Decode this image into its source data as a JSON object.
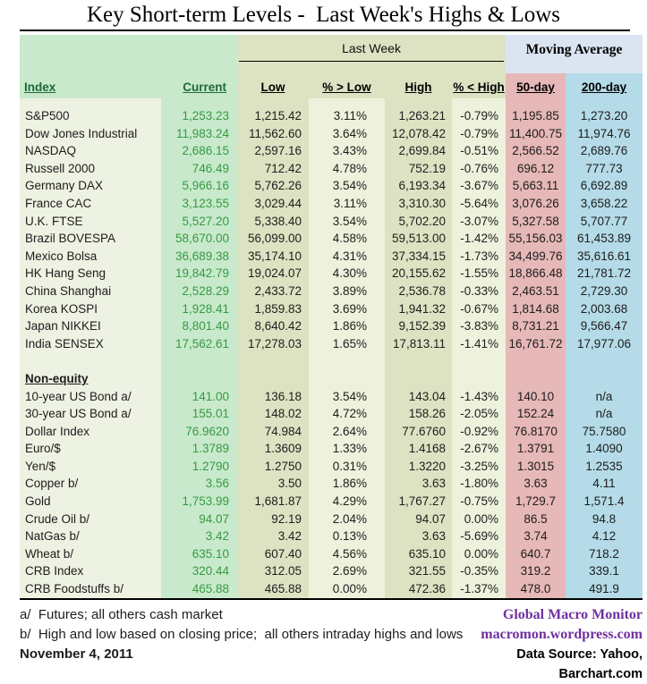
{
  "title": "Key Short-term Levels -  Last Week's Highs & Lows",
  "header": {
    "group_last_week": "Last Week",
    "group_moving_average": "Moving Average",
    "columns": [
      "Index",
      "Current",
      "Low",
      "% > Low",
      "High",
      "% < High",
      "50-day",
      "200-day"
    ]
  },
  "colors": {
    "index_column_bg": "#edf2e2",
    "current_column_bg": "#c8e9cc",
    "low_high_column_bg": "#dde3c2",
    "percent_column_bg": "#eef1dc",
    "moving_average_band_bg": "#dbe5f1",
    "ma50_column_bg": "#e6b8b7",
    "ma200_column_bg": "#b4dbe7",
    "header_green_text": "#1e6b3c",
    "current_value_green": "#379a43",
    "footer_purple": "#7030a0"
  },
  "sections": {
    "equity": {
      "rows": [
        [
          "S&P500",
          "1,253.23",
          "1,215.42",
          "3.11%",
          "1,263.21",
          "-0.79%",
          "1,195.85",
          "1,273.20"
        ],
        [
          "Dow Jones Industrial",
          "11,983.24",
          "11,562.60",
          "3.64%",
          "12,078.42",
          "-0.79%",
          "11,400.75",
          "11,974.76"
        ],
        [
          "NASDAQ",
          "2,686.15",
          "2,597.16",
          "3.43%",
          "2,699.84",
          "-0.51%",
          "2,566.52",
          "2,689.76"
        ],
        [
          "Russell 2000",
          "746.49",
          "712.42",
          "4.78%",
          "752.19",
          "-0.76%",
          "696.12",
          "777.73"
        ],
        [
          "Germany DAX",
          "5,966.16",
          "5,762.26",
          "3.54%",
          "6,193.34",
          "-3.67%",
          "5,663.11",
          "6,692.89"
        ],
        [
          "France CAC",
          "3,123.55",
          "3,029.44",
          "3.11%",
          "3,310.30",
          "-5.64%",
          "3,076.26",
          "3,658.22"
        ],
        [
          "U.K. FTSE",
          "5,527.20",
          "5,338.40",
          "3.54%",
          "5,702.20",
          "-3.07%",
          "5,327.58",
          "5,707.77"
        ],
        [
          "Brazil BOVESPA",
          "58,670.00",
          "56,099.00",
          "4.58%",
          "59,513.00",
          "-1.42%",
          "55,156.03",
          "61,453.89"
        ],
        [
          "Mexico Bolsa",
          "36,689.38",
          "35,174.10",
          "4.31%",
          "37,334.15",
          "-1.73%",
          "34,499.76",
          "35,616.61"
        ],
        [
          "HK  Hang Seng",
          "19,842.79",
          "19,024.07",
          "4.30%",
          "20,155.62",
          "-1.55%",
          "18,866.48",
          "21,781.72"
        ],
        [
          "China Shanghai",
          "2,528.29",
          "2,433.72",
          "3.89%",
          "2,536.78",
          "-0.33%",
          "2,463.51",
          "2,729.30"
        ],
        [
          "Korea KOSPI",
          "1,928.41",
          "1,859.83",
          "3.69%",
          "1,941.32",
          "-0.67%",
          "1,814.68",
          "2,003.68"
        ],
        [
          "Japan NIKKEI",
          "8,801.40",
          "8,640.42",
          "1.86%",
          "9,152.39",
          "-3.83%",
          "8,731.21",
          "9,566.47"
        ],
        [
          "India SENSEX",
          "17,562.61",
          "17,278.03",
          "1.65%",
          "17,813.11",
          "-1.41%",
          "16,761.72",
          "17,977.06"
        ]
      ]
    },
    "non_equity": {
      "heading": "Non-equity",
      "rows": [
        [
          "10-year US Bond  a/",
          "141.00",
          "136.18",
          "3.54%",
          "143.04",
          "-1.43%",
          "140.10",
          "n/a"
        ],
        [
          "30-year US Bond  a/",
          "155.01",
          "148.02",
          "4.72%",
          "158.26",
          "-2.05%",
          "152.24",
          "n/a"
        ],
        [
          "Dollar Index",
          "76.9620",
          "74.984",
          "2.64%",
          "77.6760",
          "-0.92%",
          "76.8170",
          "75.7580"
        ],
        [
          "Euro/$",
          "1.3789",
          "1.3609",
          "1.33%",
          "1.4168",
          "-2.67%",
          "1.3791",
          "1.4090"
        ],
        [
          "Yen/$",
          "1.2790",
          "1.2750",
          "0.31%",
          "1.3220",
          "-3.25%",
          "1.3015",
          "1.2535"
        ],
        [
          "Copper  b/",
          "3.56",
          "3.50",
          "1.86%",
          "3.63",
          "-1.80%",
          "3.63",
          "4.11"
        ],
        [
          "Gold",
          "1,753.99",
          "1,681.87",
          "4.29%",
          "1,767.27",
          "-0.75%",
          "1,729.7",
          "1,571.4"
        ],
        [
          "Crude Oil  b/",
          "94.07",
          "92.19",
          "2.04%",
          "94.07",
          "0.00%",
          "86.5",
          "94.8"
        ],
        [
          "NatGas  b/",
          "3.42",
          "3.42",
          "0.13%",
          "3.63",
          "-5.69%",
          "3.74",
          "4.12"
        ],
        [
          "Wheat  b/",
          "635.10",
          "607.40",
          "4.56%",
          "635.10",
          "0.00%",
          "640.7",
          "718.2"
        ],
        [
          "CRB Index",
          "320.44",
          "312.05",
          "2.69%",
          "321.55",
          "-0.35%",
          "319.2",
          "339.1"
        ],
        [
          "CRB Foodstuffs  b/",
          "465.88",
          "465.88",
          "0.00%",
          "472.36",
          "-1.37%",
          "478.0",
          "491.9"
        ]
      ]
    }
  },
  "footer": {
    "note_a": "a/  Futures; all others cash market",
    "note_b": "b/  High and low based on closing price;  all others intraday highs and lows",
    "date": "November 4, 2011",
    "brand": "Global Macro Monitor",
    "url": "macromon.wordpress.com",
    "source": "Data Source: Yahoo, Barchart.com"
  }
}
